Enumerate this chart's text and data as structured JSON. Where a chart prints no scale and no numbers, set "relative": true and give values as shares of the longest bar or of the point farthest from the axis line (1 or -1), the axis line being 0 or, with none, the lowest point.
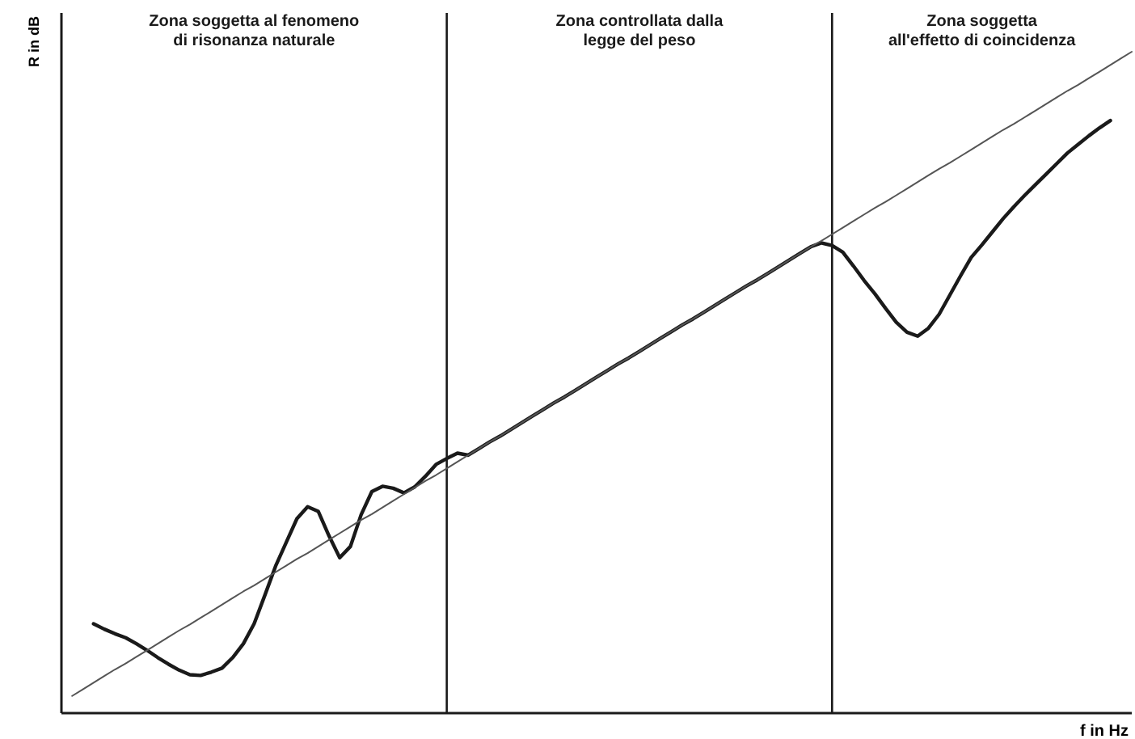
{
  "chart_data": {
    "type": "line",
    "relative": true,
    "xlabel": "f in Hz",
    "ylabel": "R in dB",
    "line_style": "solid",
    "categories": [
      null,
      null,
      null,
      null,
      null,
      null,
      null,
      null,
      null,
      null,
      null,
      null,
      null,
      null,
      null,
      null,
      null,
      null,
      null,
      null,
      null,
      null,
      null,
      null,
      null,
      null,
      null,
      null,
      null,
      null,
      null,
      null,
      null,
      null,
      null,
      null,
      null,
      null,
      null,
      null,
      null,
      null,
      null,
      null,
      null,
      null,
      null,
      null,
      null,
      null,
      null,
      null,
      null,
      null,
      null,
      null,
      null,
      null,
      null,
      null,
      null,
      null,
      null,
      null,
      null,
      null,
      null,
      null,
      null,
      null,
      null,
      null,
      null,
      null,
      null,
      null,
      null,
      null,
      null,
      null,
      null,
      null,
      null,
      null,
      null,
      null,
      null,
      null,
      null,
      null,
      null,
      null,
      null,
      null,
      null,
      null,
      null,
      null,
      null,
      null,
      null
    ],
    "series": [
      {
        "color": "#1a1a1a",
        "values": [
          null,
          null,
          null,
          0.135,
          0.127,
          0.12,
          0.114,
          0.105,
          0.095,
          0.084,
          0.074,
          0.065,
          0.058,
          0.057,
          0.062,
          0.068,
          0.084,
          0.105,
          0.135,
          0.178,
          0.222,
          0.258,
          0.294,
          0.312,
          0.305,
          0.268,
          0.235,
          0.252,
          0.3,
          0.335,
          0.343,
          0.34,
          0.333,
          0.342,
          0.358,
          0.376,
          0.385,
          0.393,
          0.39,
          0.4,
          0.41,
          0.419,
          0.429,
          0.439,
          0.449,
          0.459,
          0.469,
          0.478,
          0.488,
          0.498,
          0.508,
          0.518,
          0.528,
          0.537,
          0.547,
          0.557,
          0.567,
          0.577,
          0.587,
          0.596,
          0.606,
          0.616,
          0.626,
          0.636,
          0.646,
          0.655,
          0.665,
          0.675,
          0.685,
          0.695,
          0.705,
          0.711,
          0.707,
          0.697,
          0.676,
          0.654,
          0.634,
          0.612,
          0.591,
          0.576,
          0.57,
          0.582,
          0.603,
          0.632,
          0.661,
          0.689,
          0.708,
          0.728,
          0.748,
          0.766,
          0.783,
          0.799,
          0.815,
          0.831,
          0.847,
          0.86,
          0.873,
          0.885,
          0.896,
          null,
          null
        ]
      },
      {
        "color": "#555555",
        "values": [
          null,
          0.026,
          0.036,
          0.046,
          0.056,
          0.066,
          0.075,
          0.085,
          0.095,
          0.105,
          0.115,
          0.125,
          0.134,
          0.144,
          0.154,
          0.164,
          0.174,
          0.184,
          0.193,
          0.203,
          0.213,
          0.223,
          0.233,
          0.242,
          0.252,
          0.262,
          0.272,
          0.282,
          0.292,
          0.301,
          0.311,
          0.321,
          0.331,
          0.341,
          0.351,
          0.36,
          0.37,
          0.38,
          0.39,
          0.4,
          0.41,
          0.419,
          0.429,
          0.439,
          0.449,
          0.459,
          0.469,
          0.478,
          0.488,
          0.498,
          0.508,
          0.518,
          0.528,
          0.537,
          0.547,
          0.557,
          0.567,
          0.577,
          0.587,
          0.596,
          0.606,
          0.616,
          0.626,
          0.636,
          0.646,
          0.655,
          0.665,
          0.675,
          0.685,
          0.695,
          0.705,
          0.714,
          0.724,
          0.734,
          0.744,
          0.754,
          0.764,
          0.773,
          0.783,
          0.793,
          0.803,
          0.813,
          0.823,
          0.832,
          0.842,
          0.852,
          0.862,
          0.872,
          0.882,
          0.891,
          0.901,
          0.911,
          0.921,
          0.931,
          0.941,
          0.95,
          0.96,
          0.97,
          0.98,
          0.99,
          1.0
        ]
      }
    ],
    "annotations": [
      "Zona soggetta al fenomeno\ndi risonanza naturale",
      "Zona controllata dalla\nlegge del peso",
      "Zona soggetta\nall'effetto di coincidenza"
    ]
  }
}
